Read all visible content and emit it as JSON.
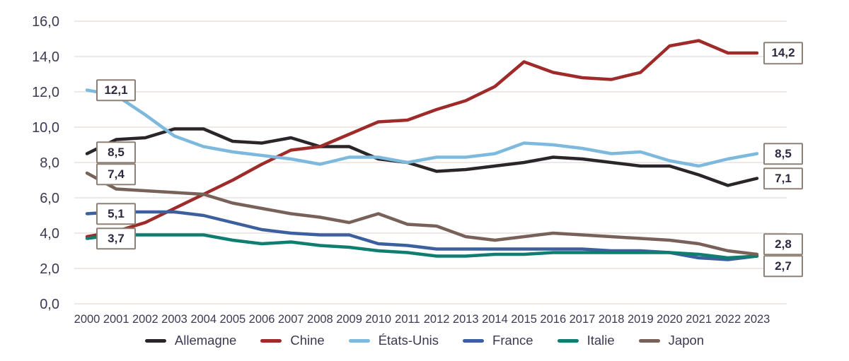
{
  "chart_data": {
    "type": "line",
    "title": "",
    "xlabel": "",
    "ylabel": "",
    "ylim": [
      0,
      16
    ],
    "ytick_step": 2,
    "ytick_labels": [
      "0,0",
      "2,0",
      "4,0",
      "6,0",
      "8,0",
      "10,0",
      "12,0",
      "14,0",
      "16,0"
    ],
    "grid": "horizontal",
    "legend_position": "bottom",
    "x": [
      2000,
      2001,
      2002,
      2003,
      2004,
      2005,
      2006,
      2007,
      2008,
      2009,
      2010,
      2011,
      2012,
      2013,
      2014,
      2015,
      2016,
      2017,
      2018,
      2019,
      2020,
      2021,
      2022,
      2023
    ],
    "series": [
      {
        "name": "Allemagne",
        "color": "#2a2528",
        "values": [
          8.5,
          9.3,
          9.4,
          9.9,
          9.9,
          9.2,
          9.1,
          9.4,
          8.9,
          8.9,
          8.2,
          8.0,
          7.5,
          7.6,
          7.8,
          8.0,
          8.3,
          8.2,
          8.0,
          7.8,
          7.8,
          7.3,
          6.7,
          7.1
        ]
      },
      {
        "name": "Chine",
        "color": "#9e2b29",
        "values": [
          3.8,
          4.1,
          4.6,
          5.4,
          6.2,
          7.0,
          7.9,
          8.7,
          8.9,
          9.6,
          10.3,
          10.4,
          11.0,
          11.5,
          12.3,
          13.7,
          13.1,
          12.8,
          12.7,
          13.1,
          14.6,
          14.9,
          14.2,
          14.2
        ]
      },
      {
        "name": "États-Unis",
        "color": "#7cb9dd",
        "values": [
          12.1,
          11.8,
          10.7,
          9.5,
          8.9,
          8.6,
          8.4,
          8.2,
          7.9,
          8.3,
          8.3,
          8.0,
          8.3,
          8.3,
          8.5,
          9.1,
          9.0,
          8.8,
          8.5,
          8.6,
          8.1,
          7.8,
          8.2,
          8.5
        ]
      },
      {
        "name": "France",
        "color": "#3c5f9e",
        "values": [
          5.1,
          5.2,
          5.2,
          5.2,
          5.0,
          4.6,
          4.2,
          4.0,
          3.9,
          3.9,
          3.4,
          3.3,
          3.1,
          3.1,
          3.1,
          3.1,
          3.1,
          3.1,
          3.0,
          3.0,
          2.9,
          2.6,
          2.5,
          2.7
        ]
      },
      {
        "name": "Italie",
        "color": "#0f7d70",
        "values": [
          3.7,
          3.9,
          3.9,
          3.9,
          3.9,
          3.6,
          3.4,
          3.5,
          3.3,
          3.2,
          3.0,
          2.9,
          2.7,
          2.7,
          2.8,
          2.8,
          2.9,
          2.9,
          2.9,
          2.9,
          2.9,
          2.8,
          2.6,
          2.7
        ]
      },
      {
        "name": "Japon",
        "color": "#786159",
        "values": [
          7.4,
          6.5,
          6.4,
          6.3,
          6.2,
          5.7,
          5.4,
          5.1,
          4.9,
          4.6,
          5.1,
          4.5,
          4.4,
          3.8,
          3.6,
          3.8,
          4.0,
          3.9,
          3.8,
          3.7,
          3.6,
          3.4,
          3.0,
          2.8
        ]
      }
    ],
    "annotations": [
      {
        "text": "12,1",
        "series": "États-Unis",
        "year": 2000,
        "value": 12.1,
        "side": "start"
      },
      {
        "text": "8,5",
        "series": "Allemagne",
        "year": 2000,
        "value": 8.5,
        "side": "start"
      },
      {
        "text": "7,4",
        "series": "Japon",
        "year": 2000,
        "value": 7.4,
        "side": "start"
      },
      {
        "text": "5,1",
        "series": "France",
        "year": 2000,
        "value": 5.1,
        "side": "start"
      },
      {
        "text": "3,7",
        "series": "Italie",
        "year": 2000,
        "value": 3.7,
        "side": "start"
      },
      {
        "text": "14,2",
        "series": "Chine",
        "year": 2023,
        "value": 14.2,
        "side": "end"
      },
      {
        "text": "8,5",
        "series": "États-Unis",
        "year": 2023,
        "value": 8.5,
        "side": "end"
      },
      {
        "text": "7,1",
        "series": "Allemagne",
        "year": 2023,
        "value": 7.1,
        "side": "end"
      },
      {
        "text": "2,8",
        "series": "Japon",
        "year": 2023,
        "value": 2.8,
        "side": "end"
      },
      {
        "text": "2,7",
        "series": "France",
        "year": 2023,
        "value": 2.7,
        "side": "end"
      }
    ]
  },
  "colors": {
    "background": "#ffffff",
    "grid": "#e9e2dd",
    "axis_text": "#3e3852",
    "annotation_border": "#8d8076",
    "annotation_text": "#2d2940",
    "legend_text": "#3e3852"
  }
}
